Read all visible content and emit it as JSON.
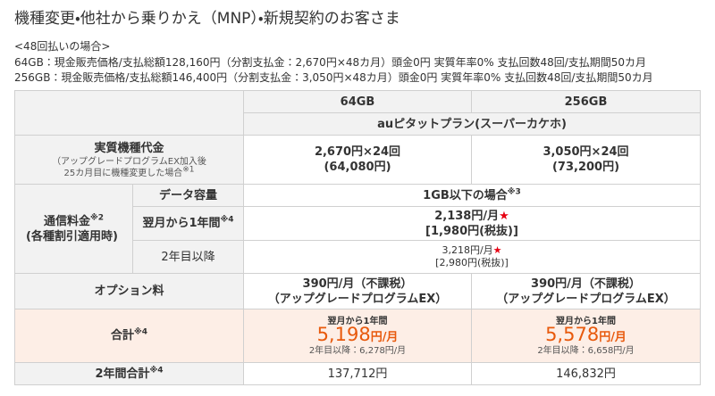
{
  "header": {
    "title": "機種変更・他社から乗りかえ（MNP）・新規契約のお客さま",
    "note_heading": "<48回払いの場合>",
    "notes": [
      "64GB：現金販売価格/支払総額128,160円（分割支払金：2,670円×48カ月）頭金0円 実質年率0% 支払回数48回/支払期間50カ月",
      "256GB：現金販売価格/支払総額146,400円（分割支払金：3,050円×48カ月）頭金0円 実質年率0% 支払回数48回/支払期間50カ月"
    ]
  },
  "table": {
    "columns": [
      "64GB",
      "256GB"
    ],
    "plan": "auピタットプラン(スーパーカケホ)",
    "device_cost": {
      "label": "実質機種代金",
      "note_lines": [
        "（アップグレードプログラムEX加入後",
        "25カ月目に機種変更した場合"
      ],
      "note_mark": "※1",
      "values": [
        {
          "monthly": "2,670円×24回",
          "total": "(64,080円)"
        },
        {
          "monthly": "3,050円×24回",
          "total": "(73,200円)"
        }
      ]
    },
    "comm_fee": {
      "label": "通信料金",
      "mark": "※2",
      "sub": "(各種割引適用時)",
      "data": {
        "label": "データ容量",
        "value": "1GB以下の場合",
        "mark": "※3"
      },
      "first_year": {
        "label": "翌月から1年間",
        "mark": "※4",
        "value": "2,138円/月",
        "star": "★",
        "tax_excl": "[1,980円(税抜)]"
      },
      "second_year": {
        "label": "2年目以降",
        "value": "3,218円/月",
        "star": "★",
        "tax_excl": "[2,980円(税抜)]"
      }
    },
    "option": {
      "label": "オプション料",
      "values": [
        [
          "390円/月（不課税）",
          "（アップグレードプログラムEX）"
        ],
        [
          "390円/月（不課税）",
          "（アップグレードプログラムEX）"
        ]
      ]
    },
    "total": {
      "label": "合計",
      "mark": "※4",
      "values": [
        {
          "period": "翌月から1年間",
          "price": "5,198",
          "unit": "円/月",
          "after": "2年目以降：6,278円/月"
        },
        {
          "period": "翌月から1年間",
          "price": "5,578",
          "unit": "円/月",
          "after": "2年目以降：6,658円/月"
        }
      ]
    },
    "two_year": {
      "label": "2年間合計",
      "mark": "※4",
      "values": [
        "137,712円",
        "146,832円"
      ]
    }
  }
}
